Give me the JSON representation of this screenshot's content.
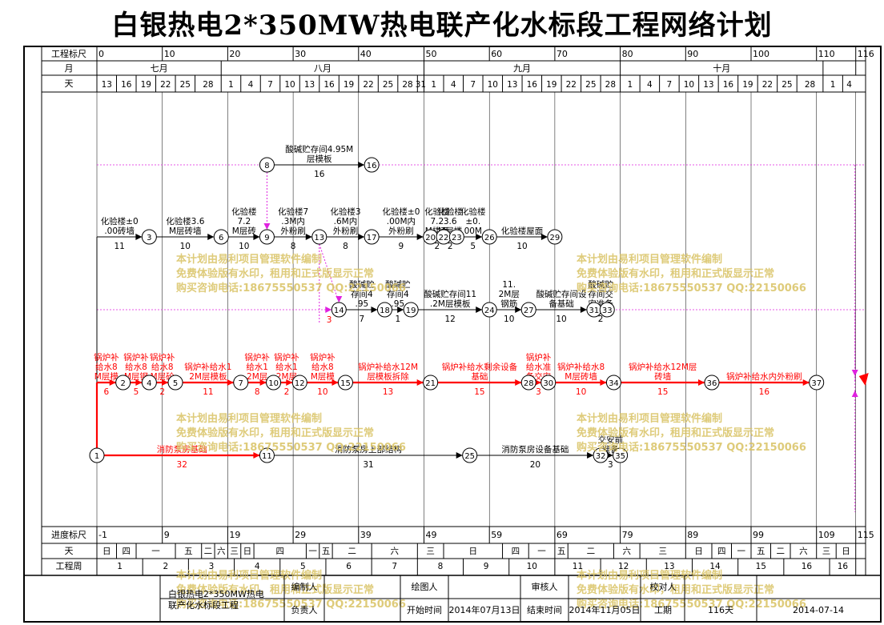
{
  "title": "白银热电2*350MW热电联产化水标段工程网络计划",
  "header": {
    "row_labels": {
      "scale": "工程标尺",
      "month": "月",
      "day": "天"
    },
    "scale_ticks": [
      {
        "v": 0,
        "t": "0"
      },
      {
        "v": 10,
        "t": "10"
      },
      {
        "v": 20,
        "t": "20"
      },
      {
        "v": 30,
        "t": "30"
      },
      {
        "v": 40,
        "t": "40"
      },
      {
        "v": 50,
        "t": "50"
      },
      {
        "v": 60,
        "t": "60"
      },
      {
        "v": 70,
        "t": "70"
      },
      {
        "v": 80,
        "t": "80"
      },
      {
        "v": 90,
        "t": "90"
      },
      {
        "v": 100,
        "t": "100"
      },
      {
        "v": 110,
        "t": "110"
      },
      {
        "v": 116,
        "t": "116"
      }
    ],
    "months": [
      {
        "label": "七月",
        "from": 0,
        "to": 19
      },
      {
        "label": "八月",
        "from": 19,
        "to": 50
      },
      {
        "label": "九月",
        "from": 50,
        "to": 80
      },
      {
        "label": "十月",
        "from": 80,
        "to": 111
      },
      {
        "label": "",
        "from": 111,
        "to": 116
      }
    ],
    "days": [
      {
        "v": 0,
        "t": "13"
      },
      {
        "v": 3,
        "t": "16"
      },
      {
        "v": 6,
        "t": "19"
      },
      {
        "v": 9,
        "t": "22"
      },
      {
        "v": 12,
        "t": "25"
      },
      {
        "v": 15,
        "t": "28"
      },
      {
        "v": 19,
        "t": "1"
      },
      {
        "v": 22,
        "t": "4"
      },
      {
        "v": 25,
        "t": "7"
      },
      {
        "v": 28,
        "t": "10"
      },
      {
        "v": 31,
        "t": "13"
      },
      {
        "v": 34,
        "t": "16"
      },
      {
        "v": 37,
        "t": "19"
      },
      {
        "v": 40,
        "t": "22"
      },
      {
        "v": 43,
        "t": "25"
      },
      {
        "v": 46,
        "t": "28"
      },
      {
        "v": 49,
        "t": "31"
      },
      {
        "v": 50,
        "t": "1"
      },
      {
        "v": 53,
        "t": "4"
      },
      {
        "v": 56,
        "t": "7"
      },
      {
        "v": 59,
        "t": "10"
      },
      {
        "v": 62,
        "t": "13"
      },
      {
        "v": 65,
        "t": "16"
      },
      {
        "v": 68,
        "t": "19"
      },
      {
        "v": 71,
        "t": "22"
      },
      {
        "v": 74,
        "t": "25"
      },
      {
        "v": 77,
        "t": "28"
      },
      {
        "v": 80,
        "t": "1"
      },
      {
        "v": 83,
        "t": "4"
      },
      {
        "v": 86,
        "t": "7"
      },
      {
        "v": 89,
        "t": "10"
      },
      {
        "v": 92,
        "t": "13"
      },
      {
        "v": 95,
        "t": "16"
      },
      {
        "v": 98,
        "t": "19"
      },
      {
        "v": 101,
        "t": "22"
      },
      {
        "v": 104,
        "t": "25"
      },
      {
        "v": 107,
        "t": "28"
      },
      {
        "v": 111,
        "t": "1"
      },
      {
        "v": 114,
        "t": "4"
      }
    ]
  },
  "footer": {
    "row_labels": {
      "progress": "进度标尺",
      "day": "天",
      "week": "工程周"
    },
    "progress_ticks": [
      {
        "v": 0,
        "t": "-1"
      },
      {
        "v": 10,
        "t": "9"
      },
      {
        "v": 20,
        "t": "19"
      },
      {
        "v": 30,
        "t": "29"
      },
      {
        "v": 40,
        "t": "39"
      },
      {
        "v": 50,
        "t": "49"
      },
      {
        "v": 60,
        "t": "59"
      },
      {
        "v": 70,
        "t": "69"
      },
      {
        "v": 80,
        "t": "79"
      },
      {
        "v": 90,
        "t": "89"
      },
      {
        "v": 100,
        "t": "99"
      },
      {
        "v": 110,
        "t": "109"
      },
      {
        "v": 116,
        "t": "115"
      }
    ],
    "weekdays": [
      {
        "from": 0,
        "to": 3,
        "t": "日"
      },
      {
        "from": 3,
        "to": 6,
        "t": "四"
      },
      {
        "from": 6,
        "to": 12,
        "t": "一"
      },
      {
        "from": 12,
        "to": 16,
        "t": "五"
      },
      {
        "from": 16,
        "to": 18,
        "t": "二"
      },
      {
        "from": 18,
        "to": 20,
        "t": "六"
      },
      {
        "from": 20,
        "to": 22,
        "t": "三"
      },
      {
        "from": 22,
        "to": 24,
        "t": "日"
      },
      {
        "from": 24,
        "to": 32,
        "t": "四"
      },
      {
        "from": 32,
        "to": 34,
        "t": "一"
      },
      {
        "from": 34,
        "to": 36,
        "t": "五"
      },
      {
        "from": 36,
        "to": 42,
        "t": "二"
      },
      {
        "from": 42,
        "to": 49,
        "t": "六"
      },
      {
        "from": 49,
        "to": 53,
        "t": "三"
      },
      {
        "from": 53,
        "to": 62,
        "t": "日"
      },
      {
        "from": 62,
        "to": 66,
        "t": "四"
      },
      {
        "from": 66,
        "to": 70,
        "t": "一"
      },
      {
        "from": 70,
        "to": 72,
        "t": "五"
      },
      {
        "from": 72,
        "to": 79,
        "t": "二"
      },
      {
        "from": 79,
        "to": 83,
        "t": "六"
      },
      {
        "from": 83,
        "to": 90,
        "t": "三"
      },
      {
        "from": 90,
        "to": 94,
        "t": "日"
      },
      {
        "from": 94,
        "to": 97,
        "t": "四"
      },
      {
        "from": 97,
        "to": 100,
        "t": "一"
      },
      {
        "from": 100,
        "to": 103,
        "t": "五"
      },
      {
        "from": 103,
        "to": 106,
        "t": "二"
      },
      {
        "from": 106,
        "to": 110,
        "t": "六"
      },
      {
        "from": 110,
        "to": 113,
        "t": "三"
      },
      {
        "from": 113,
        "to": 116,
        "t": "日"
      }
    ],
    "weeks": [
      {
        "from": 0,
        "to": 7,
        "t": "1"
      },
      {
        "from": 7,
        "to": 14,
        "t": "2"
      },
      {
        "from": 14,
        "to": 21,
        "t": "3"
      },
      {
        "from": 21,
        "to": 28,
        "t": "4"
      },
      {
        "from": 28,
        "to": 35,
        "t": "5"
      },
      {
        "from": 35,
        "to": 42,
        "t": "6"
      },
      {
        "from": 42,
        "to": 49,
        "t": "7"
      },
      {
        "from": 49,
        "to": 56,
        "t": "8"
      },
      {
        "from": 56,
        "to": 63,
        "t": "9"
      },
      {
        "from": 63,
        "to": 70,
        "t": "10"
      },
      {
        "from": 70,
        "to": 77,
        "t": "11"
      },
      {
        "from": 77,
        "to": 84,
        "t": "12"
      },
      {
        "from": 84,
        "to": 91,
        "t": "13"
      },
      {
        "from": 91,
        "to": 98,
        "t": "14"
      },
      {
        "from": 98,
        "to": 105,
        "t": "15"
      },
      {
        "from": 105,
        "to": 112,
        "t": "16"
      },
      {
        "from": 112,
        "to": 116,
        "t": "16"
      }
    ]
  },
  "network": {
    "nodes": [
      {
        "id": "1",
        "v": 0,
        "row": "r5"
      },
      {
        "id": "2",
        "v": 4,
        "row": "r4"
      },
      {
        "id": "3",
        "v": 8,
        "row": "r2"
      },
      {
        "id": "4",
        "v": 8,
        "row": "r4"
      },
      {
        "id": "5",
        "v": 12,
        "row": "r4"
      },
      {
        "id": "6",
        "v": 19,
        "row": "r2"
      },
      {
        "id": "7",
        "v": 22,
        "row": "r4"
      },
      {
        "id": "8",
        "v": 26,
        "row": "r1"
      },
      {
        "id": "9",
        "v": 26,
        "row": "r2"
      },
      {
        "id": "10",
        "v": 27,
        "row": "r4"
      },
      {
        "id": "11",
        "v": 26,
        "row": "r5"
      },
      {
        "id": "12",
        "v": 31,
        "row": "r4"
      },
      {
        "id": "13",
        "v": 34,
        "row": "r2"
      },
      {
        "id": "14",
        "v": 37,
        "row": "r3"
      },
      {
        "id": "15",
        "v": 38,
        "row": "r4"
      },
      {
        "id": "16",
        "v": 42,
        "row": "r1"
      },
      {
        "id": "17",
        "v": 42,
        "row": "r2"
      },
      {
        "id": "18",
        "v": 44,
        "row": "r3"
      },
      {
        "id": "19",
        "v": 48,
        "row": "r3"
      },
      {
        "id": "20",
        "v": 51,
        "row": "r2"
      },
      {
        "id": "21",
        "v": 51,
        "row": "r4"
      },
      {
        "id": "22",
        "v": 53,
        "row": "r2"
      },
      {
        "id": "23",
        "v": 55,
        "row": "r2"
      },
      {
        "id": "24",
        "v": 60,
        "row": "r3"
      },
      {
        "id": "25",
        "v": 57,
        "row": "r5"
      },
      {
        "id": "26",
        "v": 60,
        "row": "r2"
      },
      {
        "id": "27",
        "v": 66,
        "row": "r3"
      },
      {
        "id": "28",
        "v": 66,
        "row": "r4"
      },
      {
        "id": "29",
        "v": 70,
        "row": "r2"
      },
      {
        "id": "30",
        "v": 69,
        "row": "r4"
      },
      {
        "id": "31",
        "v": 76,
        "row": "r3"
      },
      {
        "id": "32",
        "v": 77,
        "row": "r5"
      },
      {
        "id": "33",
        "v": 78,
        "row": "r3"
      },
      {
        "id": "34",
        "v": 79,
        "row": "r4"
      },
      {
        "id": "35",
        "v": 80,
        "row": "r5"
      },
      {
        "id": "36",
        "v": 94,
        "row": "r4"
      },
      {
        "id": "37",
        "v": 110,
        "row": "r4"
      }
    ],
    "activities": [
      {
        "from": "8",
        "to": "16",
        "name": "酸碱贮存间4.95M层模板",
        "dur": "16",
        "critical": false
      },
      {
        "from": "1",
        "to": "3",
        "name": "化验楼±0.00砖墙",
        "dur": "11",
        "critical": false,
        "via_top": true
      },
      {
        "from": "3",
        "to": "6",
        "name": "化验楼3.6M层砖墙",
        "dur": "10",
        "critical": false
      },
      {
        "from": "6",
        "to": "9",
        "name": "化验楼7.2M层砖墙",
        "dur": "10",
        "critical": false
      },
      {
        "from": "9",
        "to": "13",
        "name": "化验楼7.3M内外粉刷",
        "dur": "8",
        "critical": false
      },
      {
        "from": "13",
        "to": "17",
        "name": "化验楼3.6M内外粉刷",
        "dur": "8",
        "critical": false
      },
      {
        "from": "17",
        "to": "20",
        "name": "化验楼±0.00M内外粉刷",
        "dur": "9",
        "critical": false
      },
      {
        "from": "20",
        "to": "22",
        "name": "化验楼7.2M楼面",
        "dur": "2",
        "critical": false
      },
      {
        "from": "22",
        "to": "23",
        "name": "化验楼3.6M层楼面",
        "dur": "2",
        "critical": false
      },
      {
        "from": "23",
        "to": "26",
        "name": "化验楼±0.00M地面",
        "dur": "5",
        "critical": false
      },
      {
        "from": "26",
        "to": "29",
        "name": "化验楼屋面",
        "dur": "10",
        "critical": false
      },
      {
        "from": "14",
        "to": "18",
        "name": "酸碱贮存间4.95M层钢筋",
        "dur": "7",
        "critical": false
      },
      {
        "from": "18",
        "to": "19",
        "name": "酸碱贮存间4.95M层砼",
        "dur": "1",
        "critical": false
      },
      {
        "from": "19",
        "to": "24",
        "name": "酸碱贮存间11.2M层模板",
        "dur": "12",
        "critical": false
      },
      {
        "from": "24",
        "to": "27",
        "name": "11.2M层钢筋",
        "dur": "10",
        "critical": false
      },
      {
        "from": "27",
        "to": "31",
        "name": "酸碱贮存间设备基础",
        "dur": "10",
        "critical": false
      },
      {
        "from": "31",
        "to": "33",
        "name": "酸碱贮存间交安准备",
        "dur": "2",
        "critical": false
      },
      {
        "from": "1",
        "to": "2",
        "name": "锅炉补给水8M层模板",
        "dur": "6",
        "critical": true,
        "via_left": true
      },
      {
        "from": "2",
        "to": "4",
        "name": "锅炉补给水8M层钢筋",
        "dur": "5",
        "critical": true
      },
      {
        "from": "4",
        "to": "5",
        "name": "锅炉补给水8M层砼",
        "dur": "2",
        "critical": true
      },
      {
        "from": "5",
        "to": "7",
        "name": "锅炉补给水12M层模板",
        "dur": "11",
        "critical": true
      },
      {
        "from": "7",
        "to": "10",
        "name": "锅炉补给水12M层钢筋",
        "dur": "8",
        "critical": true
      },
      {
        "from": "10",
        "to": "12",
        "name": "锅炉补给水12M层砼",
        "dur": "2",
        "critical": true
      },
      {
        "from": "12",
        "to": "15",
        "name": "锅炉补给水8M层模板拆除",
        "dur": "10",
        "critical": true
      },
      {
        "from": "15",
        "to": "21",
        "name": "锅炉补给水12M层模板拆除",
        "dur": "13",
        "critical": true
      },
      {
        "from": "21",
        "to": "28",
        "name": "锅炉补给水剩余设备基础",
        "dur": "15",
        "critical": true
      },
      {
        "from": "28",
        "to": "30",
        "name": "锅炉补给水准备交安",
        "dur": "3",
        "critical": true
      },
      {
        "from": "30",
        "to": "34",
        "name": "锅炉补给水8M层砖墙",
        "dur": "10",
        "critical": true
      },
      {
        "from": "34",
        "to": "36",
        "name": "锅炉补给水12M层砖墙",
        "dur": "15",
        "critical": true
      },
      {
        "from": "36",
        "to": "37",
        "name": "锅炉补给水内外粉刷",
        "dur": "16",
        "critical": true
      },
      {
        "from": "1",
        "to": "11",
        "name": "消防泵房基础",
        "dur": "32",
        "critical": true
      },
      {
        "from": "11",
        "to": "25",
        "name": "消防泵房上部结构",
        "dur": "31",
        "critical": false
      },
      {
        "from": "25",
        "to": "32",
        "name": "消防泵房设备基础",
        "dur": "20",
        "critical": false
      },
      {
        "from": "32",
        "to": "35",
        "name": "交安前准备",
        "dur": "3",
        "critical": false
      }
    ],
    "dummies": [
      {
        "from": "8",
        "to": "9"
      },
      {
        "from": "13",
        "to": "14"
      }
    ],
    "free_float": [
      {
        "row": "r3",
        "label": "3"
      }
    ]
  },
  "signature": {
    "project_name": "白银热电2*350MW热电联产化水标段工程",
    "labels": {
      "compiler": "编制人",
      "drafter": "绘图人",
      "reviewer": "审核人",
      "checker": "校对人",
      "manager": "负责人",
      "start": "开始时间",
      "end": "结束时间",
      "duration": "工期"
    },
    "values": {
      "start": "2014年07月13日",
      "end": "2014年11月05日",
      "duration": "116天",
      "date": "2014-07-14"
    }
  },
  "watermark": {
    "lines": [
      "本计划由易利项目管理软件编制",
      "免费体验版有水印，租用和正式版显示正常",
      "购买咨询电话:18675550537 QQ:22150066"
    ],
    "color": "#d9c263"
  },
  "colors": {
    "critical": "#ff0000",
    "normal": "#000000",
    "dashed": "#e020e0",
    "grid": "#000000"
  }
}
